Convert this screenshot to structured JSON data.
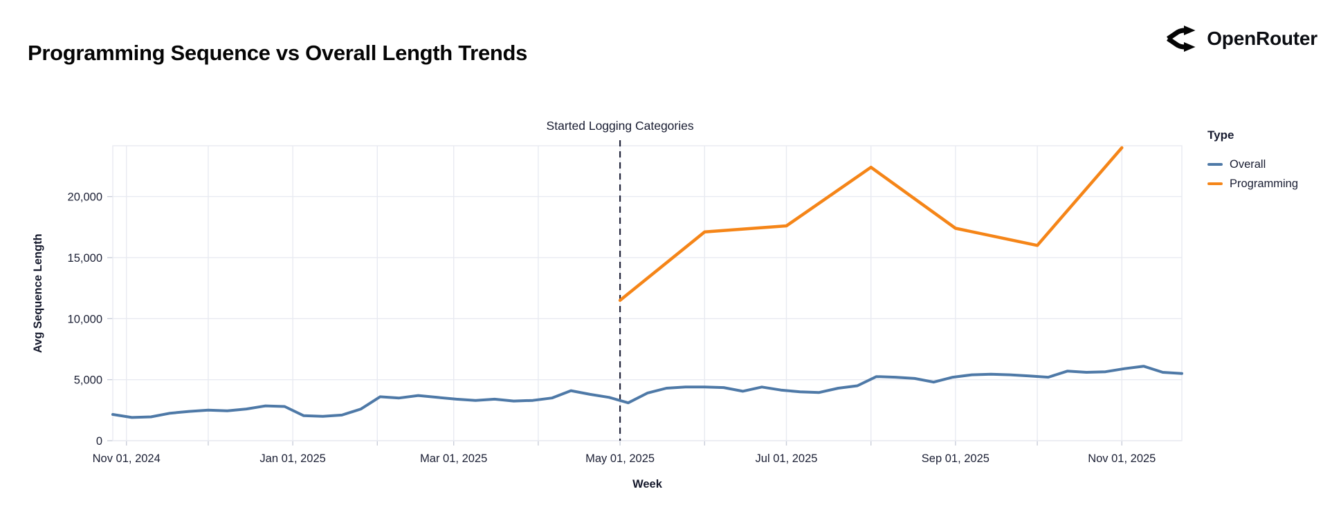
{
  "header": {
    "brand": "OpenRouter"
  },
  "chart_data": {
    "type": "line",
    "title": "Programming Sequence vs Overall Length Trends",
    "xlabel": "Week",
    "ylabel": "Avg Sequence Length",
    "ylim": [
      0,
      24165
    ],
    "grid": true,
    "legend_position": "right",
    "legend": {
      "title": "Type",
      "entries": [
        {
          "name": "Overall",
          "color": "#4e79a7"
        },
        {
          "name": "Programming",
          "color": "#f58518"
        }
      ]
    },
    "annotation": {
      "label": "Started Logging Categories",
      "date": "2025-05-01"
    },
    "x_domain": [
      "2024-10-27",
      "2025-11-23"
    ],
    "y_ticks": [
      0,
      5000,
      10000,
      15000,
      20000
    ],
    "x_ticks": [
      {
        "date": "2024-11-01",
        "label": "Nov 01, 2024"
      },
      {
        "date": "2024-12-01",
        "label": ""
      },
      {
        "date": "2025-01-01",
        "label": "Jan 01, 2025"
      },
      {
        "date": "2025-02-01",
        "label": ""
      },
      {
        "date": "2025-03-01",
        "label": "Mar 01, 2025"
      },
      {
        "date": "2025-04-01",
        "label": ""
      },
      {
        "date": "2025-05-01",
        "label": "May 01, 2025"
      },
      {
        "date": "2025-06-01",
        "label": ""
      },
      {
        "date": "2025-07-01",
        "label": "Jul 01, 2025"
      },
      {
        "date": "2025-08-01",
        "label": ""
      },
      {
        "date": "2025-09-01",
        "label": "Sep 01, 2025"
      },
      {
        "date": "2025-10-01",
        "label": ""
      },
      {
        "date": "2025-11-01",
        "label": "Nov 01, 2025"
      }
    ],
    "series": [
      {
        "name": "Overall",
        "color": "#4e79a7",
        "stroke_width": 4,
        "points": [
          [
            "2024-10-27",
            2150
          ],
          [
            "2024-11-03",
            1900
          ],
          [
            "2024-11-10",
            1950
          ],
          [
            "2024-11-17",
            2250
          ],
          [
            "2024-11-24",
            2400
          ],
          [
            "2024-12-01",
            2500
          ],
          [
            "2024-12-08",
            2450
          ],
          [
            "2024-12-15",
            2600
          ],
          [
            "2024-12-22",
            2850
          ],
          [
            "2024-12-29",
            2800
          ],
          [
            "2025-01-05",
            2050
          ],
          [
            "2025-01-12",
            2000
          ],
          [
            "2025-01-19",
            2100
          ],
          [
            "2025-01-26",
            2600
          ],
          [
            "2025-02-02",
            3600
          ],
          [
            "2025-02-09",
            3500
          ],
          [
            "2025-02-16",
            3700
          ],
          [
            "2025-02-23",
            3550
          ],
          [
            "2025-03-02",
            3400
          ],
          [
            "2025-03-09",
            3300
          ],
          [
            "2025-03-16",
            3400
          ],
          [
            "2025-03-23",
            3250
          ],
          [
            "2025-03-30",
            3300
          ],
          [
            "2025-04-06",
            3500
          ],
          [
            "2025-04-13",
            4100
          ],
          [
            "2025-04-20",
            3800
          ],
          [
            "2025-04-27",
            3550
          ],
          [
            "2025-05-04",
            3100
          ],
          [
            "2025-05-11",
            3900
          ],
          [
            "2025-05-18",
            4300
          ],
          [
            "2025-05-25",
            4400
          ],
          [
            "2025-06-01",
            4400
          ],
          [
            "2025-06-08",
            4350
          ],
          [
            "2025-06-15",
            4050
          ],
          [
            "2025-06-22",
            4400
          ],
          [
            "2025-06-29",
            4150
          ],
          [
            "2025-07-06",
            4000
          ],
          [
            "2025-07-13",
            3950
          ],
          [
            "2025-07-20",
            4300
          ],
          [
            "2025-07-27",
            4500
          ],
          [
            "2025-08-03",
            5250
          ],
          [
            "2025-08-10",
            5200
          ],
          [
            "2025-08-17",
            5100
          ],
          [
            "2025-08-24",
            4800
          ],
          [
            "2025-08-31",
            5200
          ],
          [
            "2025-09-07",
            5400
          ],
          [
            "2025-09-14",
            5450
          ],
          [
            "2025-09-21",
            5400
          ],
          [
            "2025-09-28",
            5300
          ],
          [
            "2025-10-05",
            5200
          ],
          [
            "2025-10-12",
            5700
          ],
          [
            "2025-10-19",
            5600
          ],
          [
            "2025-10-26",
            5650
          ],
          [
            "2025-11-02",
            5900
          ],
          [
            "2025-11-09",
            6100
          ],
          [
            "2025-11-16",
            5600
          ],
          [
            "2025-11-23",
            5500
          ]
        ]
      },
      {
        "name": "Programming",
        "color": "#f58518",
        "stroke_width": 4.5,
        "points": [
          [
            "2025-05-01",
            11500
          ],
          [
            "2025-06-01",
            17100
          ],
          [
            "2025-07-01",
            17600
          ],
          [
            "2025-08-01",
            22400
          ],
          [
            "2025-09-01",
            17400
          ],
          [
            "2025-10-01",
            16000
          ],
          [
            "2025-11-01",
            24000
          ]
        ]
      }
    ],
    "colors": {
      "gridline": "#e8eaf1",
      "plot_border": "#e8eaf1",
      "tick_mark": "#c9cdd9",
      "annotation_rule": "#20233a",
      "axis_text": "#1a1e33"
    }
  }
}
